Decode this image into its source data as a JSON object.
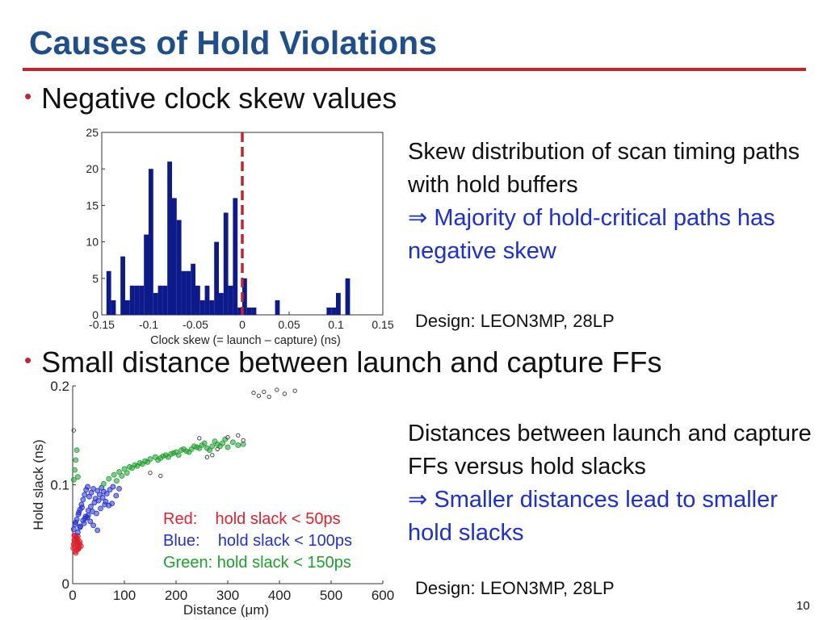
{
  "slide": {
    "title": "Causes of Hold Violations",
    "page_number": "10"
  },
  "bullets": [
    "Negative clock skew values",
    "Small distance between launch and capture FFs"
  ],
  "panels": [
    {
      "desc_line1": "Skew distribution of scan timing paths with hold buffers",
      "arrow": "⇒",
      "highlight": "Majority of hold-critical paths has negative skew",
      "design_note": "Design: LEON3MP, 28LP"
    },
    {
      "desc_line1": "Distances between launch and capture FFs versus hold slacks",
      "arrow": "⇒",
      "highlight": "Smaller distances lead to smaller hold slacks",
      "design_note": "Design: LEON3MP, 28LP"
    }
  ],
  "legend": {
    "red": "Red:    hold slack < 50ps",
    "blue": "Blue:    hold slack < 100ps",
    "green": "Green: hold slack < 150ps"
  },
  "colors": {
    "title": "#1f4e8c",
    "rule": "#c0262d",
    "highlight": "#1b2fd8",
    "bar": "#0d1a8c",
    "marker": "#c0262d",
    "red": "#e0202a",
    "blue": "#2331d0",
    "green": "#1aa12a"
  },
  "chart_data": [
    {
      "type": "bar",
      "xlabel": "Clock skew (= launch – capture) (ns)",
      "ylabel": "",
      "xlim": [
        -0.15,
        0.15
      ],
      "ylim": [
        0,
        25
      ],
      "xticks": [
        -0.15,
        -0.1,
        -0.05,
        0,
        0.05,
        0.1,
        0.15
      ],
      "xtick_labels": [
        "-0.15",
        "-0.1",
        "-0.05",
        "0",
        "0.05",
        "0.1",
        "0.15"
      ],
      "yticks": [
        0,
        5,
        10,
        15,
        20,
        25
      ],
      "bin_width": 0.005,
      "bin_left_edges": [
        -0.145,
        -0.14,
        -0.13,
        -0.125,
        -0.12,
        -0.115,
        -0.11,
        -0.105,
        -0.1,
        -0.095,
        -0.09,
        -0.085,
        -0.08,
        -0.075,
        -0.07,
        -0.065,
        -0.06,
        -0.055,
        -0.05,
        -0.045,
        -0.04,
        -0.035,
        -0.03,
        -0.025,
        -0.02,
        -0.015,
        -0.01,
        -0.005,
        0.0,
        0.005,
        0.01,
        0.035,
        0.09,
        0.095,
        0.1,
        0.11
      ],
      "values": [
        6,
        2,
        8,
        2,
        4,
        4,
        4,
        11,
        20,
        3,
        4,
        4,
        21,
        16,
        13,
        6,
        6,
        7,
        4,
        2,
        4,
        2,
        10,
        3,
        14,
        4,
        16,
        1,
        5,
        1,
        1,
        2,
        1,
        1,
        3,
        5
      ],
      "reference_line_x": 0
    },
    {
      "type": "scatter",
      "xlabel": "Distance (μm)",
      "ylabel": "Hold slack (ns)",
      "xlim": [
        0,
        600
      ],
      "ylim": [
        0,
        0.2
      ],
      "xticks": [
        0,
        100,
        200,
        300,
        400,
        500,
        600
      ],
      "yticks": [
        0,
        0.1,
        0.2
      ],
      "series": [
        {
          "name": "Red",
          "color": "#e0202a",
          "x": [
            1,
            2,
            3,
            4,
            5,
            6,
            7,
            8,
            9,
            10,
            11,
            12,
            3,
            5,
            7,
            9,
            11,
            13,
            6,
            8,
            10,
            12,
            14,
            16
          ],
          "y": [
            0.036,
            0.04,
            0.044,
            0.048,
            0.038,
            0.042,
            0.046,
            0.034,
            0.039,
            0.045,
            0.041,
            0.037,
            0.049,
            0.033,
            0.047,
            0.043,
            0.035,
            0.04,
            0.031,
            0.044,
            0.048,
            0.036,
            0.042,
            0.038
          ]
        },
        {
          "name": "Blue",
          "color": "#2331d0",
          "x": [
            2,
            5,
            8,
            11,
            14,
            17,
            20,
            23,
            26,
            29,
            32,
            36,
            40,
            44,
            48,
            52,
            56,
            60,
            66,
            72,
            78,
            84,
            90,
            10,
            15,
            20,
            25,
            30,
            35,
            42,
            50,
            58,
            64,
            70,
            76,
            6,
            12,
            18,
            24,
            30,
            38,
            46,
            54,
            62,
            14,
            22,
            28,
            34,
            40,
            48
          ],
          "y": [
            0.055,
            0.06,
            0.065,
            0.07,
            0.075,
            0.08,
            0.085,
            0.09,
            0.095,
            0.098,
            0.088,
            0.092,
            0.096,
            0.086,
            0.094,
            0.09,
            0.097,
            0.093,
            0.091,
            0.095,
            0.098,
            0.089,
            0.096,
            0.052,
            0.058,
            0.064,
            0.068,
            0.074,
            0.078,
            0.082,
            0.084,
            0.087,
            0.083,
            0.079,
            0.081,
            0.062,
            0.072,
            0.077,
            0.066,
            0.069,
            0.073,
            0.071,
            0.076,
            0.08,
            0.057,
            0.061,
            0.067,
            0.063,
            0.059,
            0.054
          ]
        },
        {
          "name": "Green",
          "color": "#1aa12a",
          "x": [
            2,
            4,
            6,
            8,
            10,
            60,
            70,
            80,
            90,
            100,
            110,
            120,
            130,
            140,
            150,
            160,
            170,
            180,
            190,
            200,
            210,
            220,
            230,
            240,
            250,
            260,
            270,
            280,
            290,
            300,
            310,
            320,
            330,
            85,
            95,
            105,
            115,
            125,
            135,
            145,
            165,
            175,
            185,
            195,
            205,
            215,
            225,
            235,
            245,
            255,
            265,
            275,
            285,
            295
          ],
          "y": [
            0.105,
            0.115,
            0.125,
            0.135,
            0.108,
            0.101,
            0.106,
            0.11,
            0.113,
            0.116,
            0.118,
            0.12,
            0.122,
            0.124,
            0.126,
            0.128,
            0.127,
            0.13,
            0.131,
            0.133,
            0.135,
            0.134,
            0.136,
            0.138,
            0.14,
            0.137,
            0.139,
            0.141,
            0.142,
            0.138,
            0.143,
            0.14,
            0.141,
            0.104,
            0.109,
            0.112,
            0.117,
            0.119,
            0.121,
            0.123,
            0.125,
            0.129,
            0.128,
            0.132,
            0.13,
            0.136,
            0.133,
            0.139,
            0.137,
            0.142,
            0.135,
            0.144,
            0.139,
            0.146
          ]
        },
        {
          "name": "Other",
          "color": "#333333",
          "x": [
            2,
            150,
            170,
            260,
            280,
            300,
            320,
            330,
            350,
            360,
            370,
            380,
            395,
            410,
            430,
            245,
            270
          ],
          "y": [
            0.155,
            0.112,
            0.109,
            0.128,
            0.136,
            0.148,
            0.15,
            0.145,
            0.193,
            0.19,
            0.194,
            0.189,
            0.196,
            0.192,
            0.195,
            0.147,
            0.13
          ]
        }
      ]
    }
  ]
}
